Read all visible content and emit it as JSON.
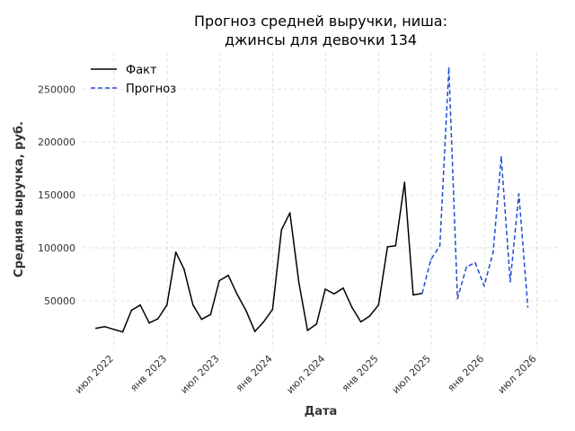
{
  "chart_data": {
    "type": "line",
    "title_line1": "Прогноз средней выручки, ниша:",
    "title_line2": "джинсы для девочки 134",
    "xlabel": "Дата",
    "ylabel": "Средняя выручка, руб.",
    "ylim": [
      5000,
      285000
    ],
    "xlim": [
      "2022-03-15",
      "2026-09-15"
    ],
    "yticks": [
      50000,
      100000,
      150000,
      200000,
      250000
    ],
    "xticks": [
      {
        "date": "2022-07-01",
        "label": "июл 2022"
      },
      {
        "date": "2023-01-01",
        "label": "янв 2023"
      },
      {
        "date": "2023-07-01",
        "label": "июл 2023"
      },
      {
        "date": "2024-01-01",
        "label": "янв 2024"
      },
      {
        "date": "2024-07-01",
        "label": "июл 2024"
      },
      {
        "date": "2025-01-01",
        "label": "янв 2025"
      },
      {
        "date": "2025-07-01",
        "label": "июл 2025"
      },
      {
        "date": "2026-01-01",
        "label": "янв 2026"
      },
      {
        "date": "2026-07-01",
        "label": "июл 2026"
      }
    ],
    "grid": true,
    "legend_position": "top-left",
    "series": [
      {
        "name": "Факт",
        "color": "#000000",
        "style": "solid",
        "points": [
          [
            "2022-04-30",
            24000
          ],
          [
            "2022-05-31",
            25500
          ],
          [
            "2022-06-30",
            23000
          ],
          [
            "2022-07-31",
            20500
          ],
          [
            "2022-08-31",
            41000
          ],
          [
            "2022-09-30",
            46000
          ],
          [
            "2022-10-31",
            29000
          ],
          [
            "2022-11-30",
            33000
          ],
          [
            "2022-12-31",
            46000
          ],
          [
            "2023-01-31",
            96000
          ],
          [
            "2023-02-28",
            80000
          ],
          [
            "2023-03-31",
            46000
          ],
          [
            "2023-04-30",
            32500
          ],
          [
            "2023-05-31",
            37000
          ],
          [
            "2023-06-30",
            69000
          ],
          [
            "2023-07-31",
            74000
          ],
          [
            "2023-08-31",
            56000
          ],
          [
            "2023-09-30",
            41000
          ],
          [
            "2023-10-31",
            21000
          ],
          [
            "2023-11-30",
            30000
          ],
          [
            "2023-12-31",
            42000
          ],
          [
            "2024-01-31",
            117000
          ],
          [
            "2024-02-29",
            133000
          ],
          [
            "2024-03-31",
            67000
          ],
          [
            "2024-04-30",
            22000
          ],
          [
            "2024-05-31",
            28000
          ],
          [
            "2024-06-30",
            61000
          ],
          [
            "2024-07-31",
            56500
          ],
          [
            "2024-08-31",
            62000
          ],
          [
            "2024-09-30",
            44000
          ],
          [
            "2024-10-31",
            30000
          ],
          [
            "2024-11-30",
            35500
          ],
          [
            "2024-12-31",
            46000
          ],
          [
            "2025-01-31",
            101000
          ],
          [
            "2025-02-28",
            102000
          ],
          [
            "2025-03-31",
            162000
          ],
          [
            "2025-04-30",
            55500
          ],
          [
            "2025-05-31",
            57000
          ]
        ]
      },
      {
        "name": "Прогноз",
        "color": "#1f4fd1",
        "style": "dashed",
        "points": [
          [
            "2025-05-31",
            57000
          ],
          [
            "2025-06-30",
            89000
          ],
          [
            "2025-07-31",
            102000
          ],
          [
            "2025-08-31",
            270000
          ],
          [
            "2025-09-30",
            52000
          ],
          [
            "2025-10-31",
            82000
          ],
          [
            "2025-11-30",
            86000
          ],
          [
            "2025-12-31",
            64000
          ],
          [
            "2026-01-31",
            96000
          ],
          [
            "2026-02-28",
            186000
          ],
          [
            "2026-03-31",
            68000
          ],
          [
            "2026-04-30",
            151000
          ],
          [
            "2026-05-31",
            44000
          ]
        ]
      }
    ]
  }
}
